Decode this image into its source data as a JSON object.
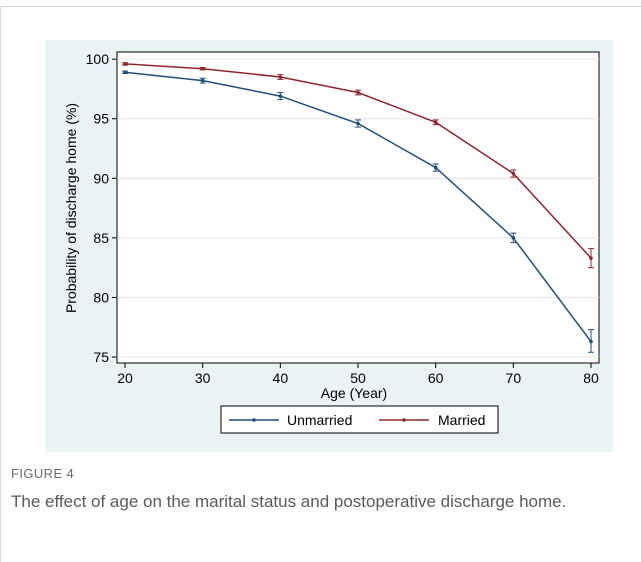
{
  "figure": {
    "label": "FIGURE 4",
    "caption": "The effect of age on the marital status and postoperative discharge home."
  },
  "colors": {
    "panel_bg": "#eaf2f3",
    "unmarried": "#1f4e79",
    "married": "#8b2530"
  },
  "chart_data": {
    "type": "line",
    "title": "",
    "xlabel": "Age (Year)",
    "ylabel": "Probability of discharge home (%)",
    "x": [
      20,
      30,
      40,
      50,
      60,
      70,
      80
    ],
    "xlim": [
      20,
      80
    ],
    "ylim": [
      74.5,
      100.6
    ],
    "x_ticks": [
      20,
      30,
      40,
      50,
      60,
      70,
      80
    ],
    "y_ticks": [
      75,
      80,
      85,
      90,
      95,
      100
    ],
    "grid": "horizontal",
    "legend_position": "bottom",
    "series": [
      {
        "name": "Unmarried",
        "color": "#1f4e79",
        "values": [
          98.9,
          98.2,
          96.9,
          94.6,
          90.9,
          85.0,
          76.3
        ],
        "ci_low": [
          98.8,
          98.0,
          96.6,
          94.3,
          90.6,
          84.6,
          75.4
        ],
        "ci_high": [
          99.0,
          98.4,
          97.2,
          94.9,
          91.2,
          85.4,
          77.3
        ]
      },
      {
        "name": "Married",
        "color": "#8b2530",
        "values": [
          99.6,
          99.2,
          98.5,
          97.2,
          94.7,
          90.4,
          83.3
        ],
        "ci_low": [
          99.5,
          99.1,
          98.3,
          97.0,
          94.5,
          90.1,
          82.5
        ],
        "ci_high": [
          99.7,
          99.3,
          98.7,
          97.4,
          94.9,
          90.7,
          84.1
        ]
      }
    ]
  }
}
